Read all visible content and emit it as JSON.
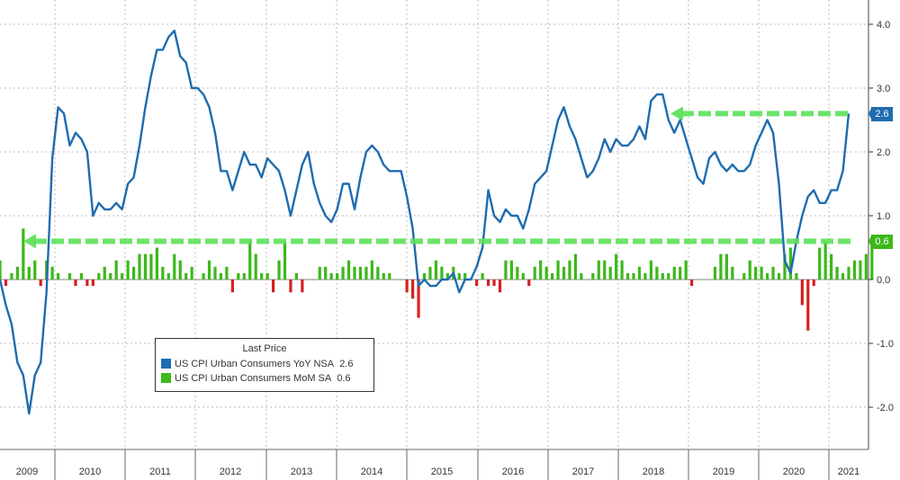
{
  "chart_data": {
    "type": "line",
    "legend": {
      "title": "Last Price",
      "entries": [
        {
          "name": "US CPI Urban Consumers YoY NSA",
          "last": "2.6",
          "color": "#1f6cb0"
        },
        {
          "name": "US CPI Urban Consumers MoM SA",
          "last": "0.6",
          "color": "#3cb81a"
        }
      ]
    },
    "x_tick_labels": [
      "2009",
      "2010",
      "2011",
      "2012",
      "2013",
      "2014",
      "2015",
      "2016",
      "2017",
      "2018",
      "2019",
      "2020",
      "2021"
    ],
    "y_tick_labels": [
      "4.0",
      "3.0",
      "2.0",
      "1.0",
      "0.0",
      "-1.0",
      "-2.0"
    ],
    "ylim": [
      -2.5,
      4.4
    ],
    "grid": true,
    "annotations": {
      "yoy_badge": "2.6",
      "mom_badge": "0.6",
      "dashed_levels": [
        2.6,
        0.6
      ]
    },
    "series": [
      {
        "name": "US CPI Urban Consumers YoY NSA",
        "kind": "line",
        "values": [
          0.0,
          -0.4,
          -0.7,
          -1.3,
          -1.5,
          -2.1,
          -1.5,
          -1.3,
          -0.2,
          1.9,
          2.7,
          2.6,
          2.1,
          2.3,
          2.2,
          2.0,
          1.0,
          1.2,
          1.1,
          1.1,
          1.2,
          1.1,
          1.5,
          1.6,
          2.1,
          2.7,
          3.2,
          3.6,
          3.6,
          3.8,
          3.9,
          3.5,
          3.4,
          3.0,
          3.0,
          2.9,
          2.7,
          2.3,
          1.7,
          1.7,
          1.4,
          1.7,
          2.0,
          1.8,
          1.8,
          1.6,
          1.9,
          1.8,
          1.7,
          1.4,
          1.0,
          1.4,
          1.8,
          2.0,
          1.5,
          1.2,
          1.0,
          0.9,
          1.1,
          1.5,
          1.5,
          1.1,
          1.6,
          2.0,
          2.1,
          2.0,
          1.8,
          1.7,
          1.7,
          1.7,
          1.3,
          0.8,
          -0.1,
          0.0,
          -0.1,
          -0.1,
          0.0,
          0.0,
          0.1,
          -0.2,
          0.0,
          0.0,
          0.2,
          0.5,
          1.4,
          1.0,
          0.9,
          1.1,
          1.0,
          1.0,
          0.8,
          1.1,
          1.5,
          1.6,
          1.7,
          2.1,
          2.5,
          2.7,
          2.4,
          2.2,
          1.9,
          1.6,
          1.7,
          1.9,
          2.2,
          2.0,
          2.2,
          2.1,
          2.1,
          2.2,
          2.4,
          2.2,
          2.8,
          2.9,
          2.9,
          2.5,
          2.3,
          2.5,
          2.2,
          1.9,
          1.6,
          1.5,
          1.9,
          2.0,
          1.8,
          1.7,
          1.8,
          1.7,
          1.7,
          1.8,
          2.1,
          2.3,
          2.5,
          2.3,
          1.5,
          0.3,
          0.1,
          0.6,
          1.0,
          1.3,
          1.4,
          1.2,
          1.2,
          1.4,
          1.4,
          1.7,
          2.6
        ]
      },
      {
        "name": "US CPI Urban Consumers MoM SA",
        "kind": "bar",
        "values": [
          0.3,
          -0.1,
          0.1,
          0.2,
          0.8,
          0.2,
          0.3,
          -0.1,
          0.3,
          0.2,
          0.1,
          0.0,
          0.1,
          -0.1,
          0.1,
          -0.1,
          -0.1,
          0.1,
          0.2,
          0.1,
          0.3,
          0.1,
          0.3,
          0.2,
          0.4,
          0.4,
          0.4,
          0.5,
          0.2,
          0.1,
          0.4,
          0.3,
          0.1,
          0.2,
          0.0,
          0.1,
          0.3,
          0.2,
          0.1,
          0.2,
          -0.2,
          0.1,
          0.1,
          0.6,
          0.4,
          0.1,
          0.1,
          -0.2,
          0.3,
          0.6,
          -0.2,
          0.1,
          -0.2,
          0.0,
          0.0,
          0.2,
          0.2,
          0.1,
          0.1,
          0.2,
          0.3,
          0.2,
          0.2,
          0.2,
          0.3,
          0.2,
          0.1,
          0.1,
          0.0,
          0.0,
          -0.2,
          -0.3,
          -0.6,
          0.1,
          0.2,
          0.3,
          0.2,
          0.1,
          0.2,
          0.1,
          0.1,
          0.0,
          -0.1,
          0.1,
          -0.1,
          -0.1,
          -0.2,
          0.3,
          0.3,
          0.2,
          0.1,
          -0.1,
          0.2,
          0.3,
          0.2,
          0.1,
          0.3,
          0.2,
          0.3,
          0.4,
          0.1,
          0.0,
          0.1,
          0.3,
          0.3,
          0.2,
          0.4,
          0.3,
          0.1,
          0.1,
          0.2,
          0.1,
          0.3,
          0.2,
          0.1,
          0.1,
          0.2,
          0.2,
          0.3,
          -0.1,
          0.0,
          0.0,
          0.0,
          0.2,
          0.4,
          0.4,
          0.2,
          0.0,
          0.1,
          0.3,
          0.2,
          0.2,
          0.1,
          0.2,
          0.1,
          0.4,
          0.5,
          0.1,
          -0.4,
          -0.8,
          -0.1,
          0.5,
          0.6,
          0.4,
          0.2,
          0.1,
          0.2,
          0.3,
          0.3,
          0.4,
          0.6
        ]
      }
    ]
  }
}
